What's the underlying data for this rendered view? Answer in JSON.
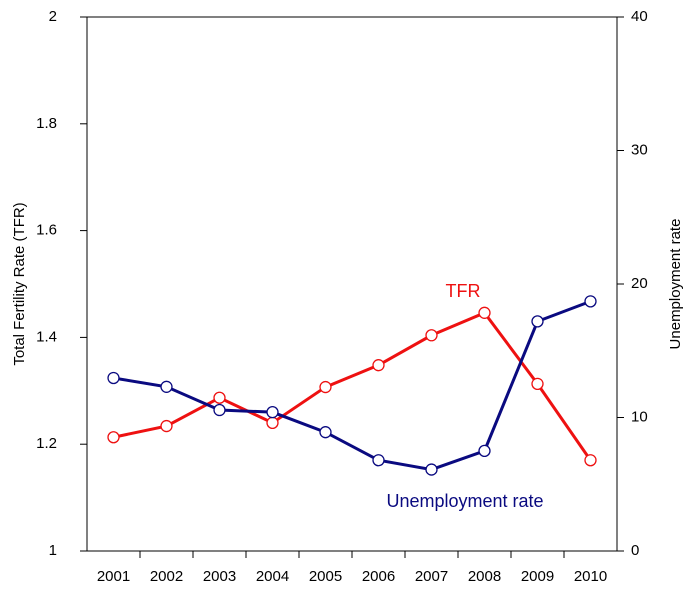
{
  "chart_data": {
    "type": "line",
    "categories": [
      "2001",
      "2002",
      "2003",
      "2004",
      "2005",
      "2006",
      "2007",
      "2008",
      "2009",
      "2010"
    ],
    "series": [
      {
        "name": "TFR",
        "color": "#ee1111",
        "axis": "y",
        "values": [
          1.213,
          1.234,
          1.287,
          1.24,
          1.307,
          1.348,
          1.404,
          1.446,
          1.313,
          1.17
        ]
      },
      {
        "name": "Unemployment rate",
        "color": "#0a0a80",
        "axis": "y2",
        "values": [
          12.96,
          12.3,
          10.56,
          10.4,
          8.9,
          6.8,
          6.1,
          7.5,
          17.2,
          18.7
        ]
      }
    ],
    "ylabel": "Total Fertility Rate (TFR)",
    "y2label": "Unemployment rate",
    "ylim": [
      1,
      2
    ],
    "yticks": [
      1,
      1.2,
      1.4,
      1.6,
      1.8,
      2
    ],
    "y2lim": [
      0,
      40
    ],
    "y2ticks": [
      0,
      10,
      20,
      30,
      40
    ],
    "annotations": [
      "TFR",
      "Unemployment rate"
    ],
    "grid": false
  }
}
